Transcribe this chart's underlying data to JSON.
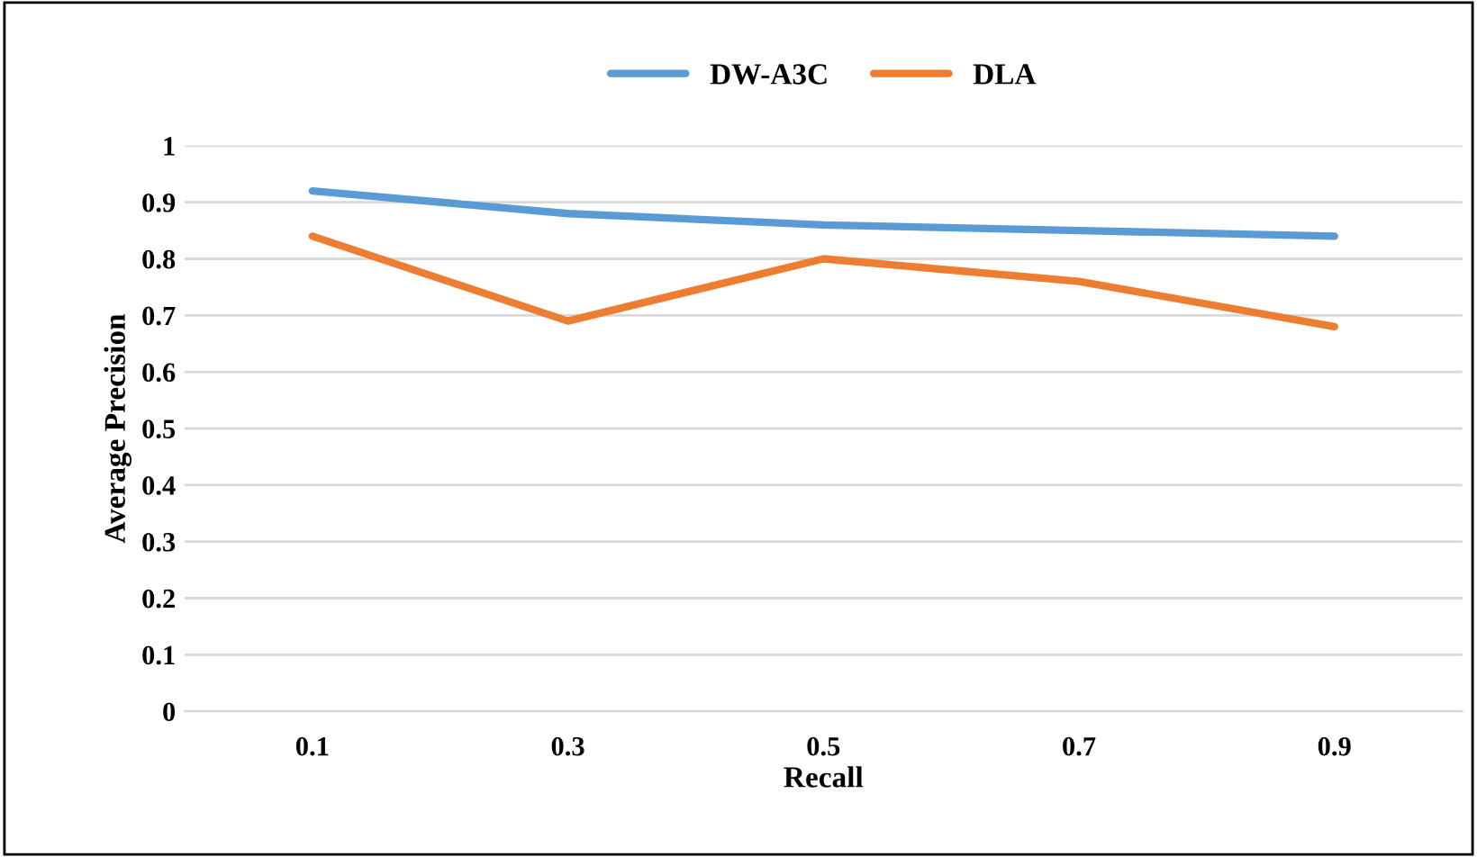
{
  "chart_data": {
    "type": "line",
    "xlabel": "Recall",
    "ylabel": "Average Precision",
    "categories": [
      "0.1",
      "0.3",
      "0.5",
      "0.7",
      "0.9"
    ],
    "series": [
      {
        "name": "DW-A3C",
        "color": "#5b9bd5",
        "values": [
          0.92,
          0.88,
          0.86,
          0.85,
          0.84
        ]
      },
      {
        "name": "DLA",
        "color": "#ed7d31",
        "values": [
          0.84,
          0.69,
          0.8,
          0.76,
          0.68
        ]
      }
    ],
    "ylim": [
      0,
      1
    ],
    "yticks": [
      0,
      0.1,
      0.2,
      0.3,
      0.4,
      0.5,
      0.6,
      0.7,
      0.8,
      0.9,
      1
    ],
    "grid": "y",
    "legend": "top",
    "marker": "none",
    "line_style": "solid"
  }
}
